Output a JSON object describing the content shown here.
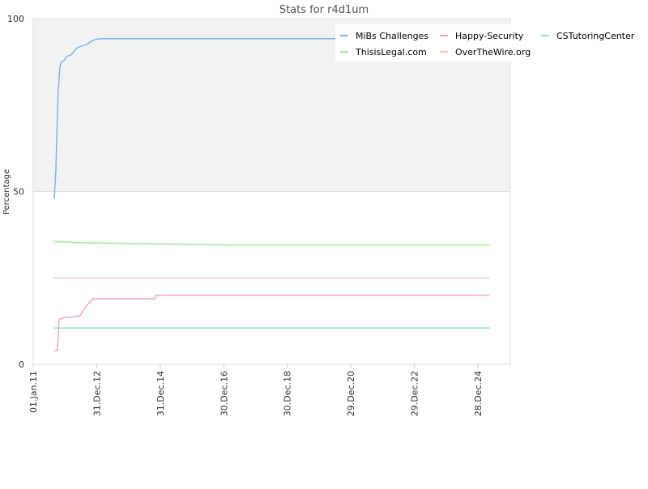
{
  "chart_data": {
    "type": "line",
    "title": "Stats for r4d1um",
    "y_label": "Percentage",
    "xlim": [
      "2011-01-01",
      "2026-01-04"
    ],
    "xticks": [
      {
        "value": "2011-01-01",
        "label": "01.Jan.11"
      },
      {
        "value": "2012-12-31",
        "label": "31.Dec.12"
      },
      {
        "value": "2014-12-31",
        "label": "31.Dec.14"
      },
      {
        "value": "2016-12-30",
        "label": "30.Dec.16"
      },
      {
        "value": "2018-12-30",
        "label": "30.Dec.18"
      },
      {
        "value": "2020-12-29",
        "label": "29.Dec.20"
      },
      {
        "value": "2022-12-29",
        "label": "29.Dec.22"
      },
      {
        "value": "2024-12-28",
        "label": "28.Dec.24"
      }
    ],
    "ylim": [
      0,
      100
    ],
    "yticks": [
      0,
      50,
      100
    ],
    "grid": true,
    "shaded_band": [
      50,
      100
    ],
    "legend": "top-right",
    "series": [
      {
        "name": "MiBs Challenges",
        "color": "#7cb5ec",
        "x": [
          "2011-08-31",
          "2011-09-09",
          "2011-09-18",
          "2011-09-27",
          "2011-10-06",
          "2011-10-15",
          "2011-10-24",
          "2011-11-03",
          "2011-11-21",
          "2011-12-28",
          "2012-01-16",
          "2012-03-11",
          "2012-05-16",
          "2012-07-01",
          "2012-09-05",
          "2012-11-01",
          "2012-12-17",
          "2013-03-02",
          "2025-05-11"
        ],
        "values": [
          48,
          52,
          56,
          64,
          72,
          79,
          82,
          86,
          87.5,
          88,
          89,
          89.5,
          91.5,
          92,
          92.5,
          93.5,
          94,
          94.2,
          94.2
        ]
      },
      {
        "name": "Happy-Security",
        "color": "#f7a1c4",
        "x": [
          "2011-08-31",
          "2011-10-06",
          "2011-10-15",
          "2011-10-24",
          "2011-12-28",
          "2012-06-20",
          "2012-09-05",
          "2012-11-20",
          "2014-11-01",
          "2014-11-10",
          "2025-05-11"
        ],
        "values": [
          4,
          4,
          8,
          13,
          13.5,
          14,
          17,
          19,
          19,
          20,
          20
        ]
      },
      {
        "name": "CSTutoringCenter",
        "color": "#90e0d0",
        "x": [
          "2011-08-22",
          "2025-05-11"
        ],
        "values": [
          10.5,
          10.5
        ]
      },
      {
        "name": "ThisisLegal.com",
        "color": "#a8e6a0",
        "x": [
          "2011-08-22",
          "2012-06-10",
          "2013-08-01",
          "2016-02-01",
          "2017-03-01",
          "2025-05-11"
        ],
        "values": [
          35.5,
          35.2,
          35,
          34.7,
          34.5,
          34.5
        ]
      },
      {
        "name": "OverTheWire.org",
        "color": "#f4c7c7",
        "x": [
          "2011-08-22",
          "2025-05-11"
        ],
        "values": [
          25,
          25
        ]
      }
    ]
  }
}
